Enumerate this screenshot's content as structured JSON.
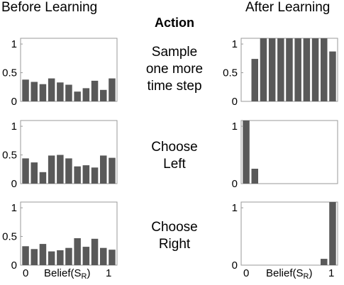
{
  "headers": {
    "before": "Before Learning",
    "after": "After Learning",
    "action": "Action"
  },
  "actions": [
    {
      "lines": [
        "Sample",
        "one more",
        "time step"
      ]
    },
    {
      "lines": [
        "Choose",
        "Left"
      ]
    },
    {
      "lines": [
        "Choose",
        "Right"
      ]
    }
  ],
  "x_axis": {
    "label_prefix": "Belief(S",
    "label_sub": "R",
    "label_suffix": ")",
    "tick_left": "0",
    "tick_right": "1"
  },
  "colors": {
    "bar": "#595959",
    "axis": "#999999"
  },
  "chart_data": [
    {
      "type": "bar",
      "panel": "before-sample",
      "ylim": [
        0,
        1.1
      ],
      "yticks": [
        "0",
        "0.5",
        "1"
      ],
      "values": [
        0.38,
        0.34,
        0.3,
        0.4,
        0.33,
        0.29,
        0.17,
        0.23,
        0.36,
        0.2,
        0.4
      ]
    },
    {
      "type": "bar",
      "panel": "after-sample",
      "ylim": [
        0,
        1.1
      ],
      "yticks": [
        "0",
        "0.5",
        "1"
      ],
      "values": [
        0,
        0.74,
        1.1,
        1.1,
        1.1,
        1.1,
        1.1,
        1.1,
        1.1,
        1.1,
        0.87
      ]
    },
    {
      "type": "bar",
      "panel": "before-left",
      "ylim": [
        0,
        1.1
      ],
      "yticks": [
        "0",
        "0.5",
        "1"
      ],
      "values": [
        0.44,
        0.37,
        0.2,
        0.49,
        0.5,
        0.44,
        0.3,
        0.32,
        0.28,
        0.49,
        0.45
      ]
    },
    {
      "type": "bar",
      "panel": "after-left",
      "ylim": [
        0,
        1.1
      ],
      "yticks": [
        "0",
        "1"
      ],
      "values": [
        1.1,
        0.26,
        0,
        0,
        0,
        0,
        0,
        0,
        0,
        0,
        0
      ]
    },
    {
      "type": "bar",
      "panel": "before-right",
      "ylim": [
        0,
        1.1
      ],
      "yticks": [
        "0",
        "0.5",
        "1"
      ],
      "values": [
        0.33,
        0.28,
        0.37,
        0.24,
        0.26,
        0.3,
        0.47,
        0.32,
        0.46,
        0.3,
        0.27
      ]
    },
    {
      "type": "bar",
      "panel": "after-right",
      "ylim": [
        0,
        1.1
      ],
      "yticks": [
        "0",
        "1"
      ],
      "values": [
        0,
        0,
        0,
        0,
        0,
        0,
        0,
        0,
        0,
        0.11,
        1.1
      ]
    }
  ]
}
